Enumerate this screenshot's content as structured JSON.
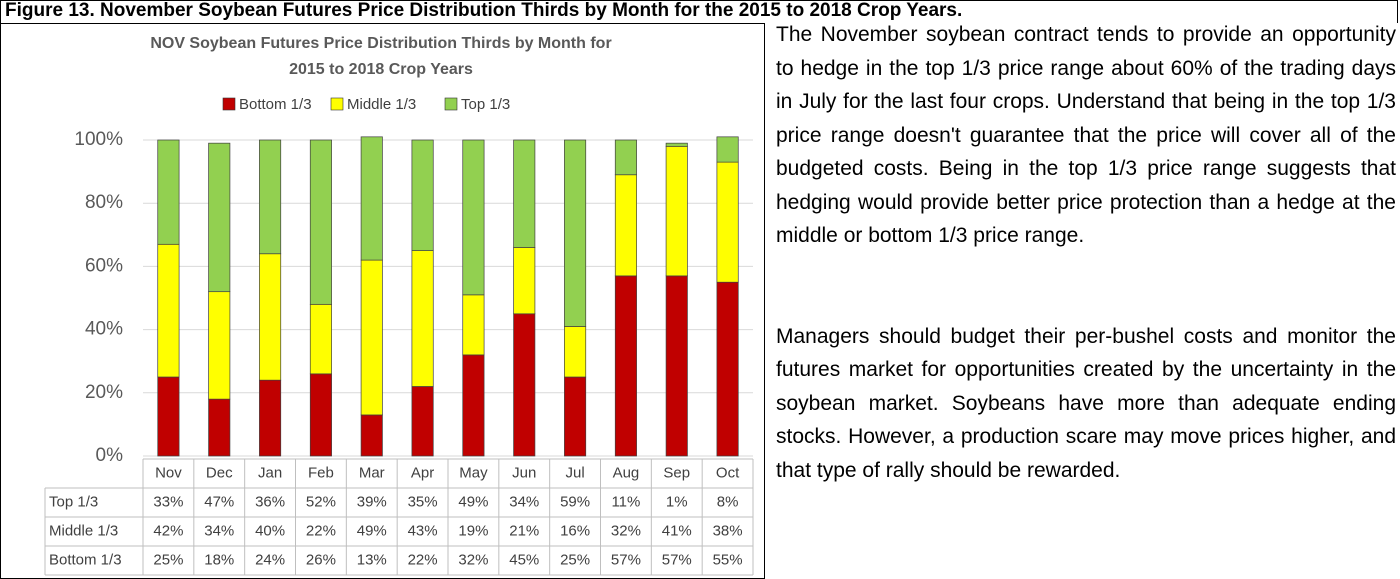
{
  "caption": "Figure 13. November Soybean Futures Price Distribution Thirds by Month for the 2015 to 2018 Crop Years.",
  "chart_data": {
    "type": "stacked_bar",
    "title": [
      "NOV Soybean Futures Price Distribution Thirds by Month for",
      "2015 to 2018 Crop Years"
    ],
    "categories": [
      "Nov",
      "Dec",
      "Jan",
      "Feb",
      "Mar",
      "Apr",
      "May",
      "Jun",
      "Jul",
      "Aug",
      "Sep",
      "Oct"
    ],
    "series": [
      {
        "name": "Bottom 1/3",
        "color": "#c00000",
        "values": [
          25,
          18,
          24,
          26,
          13,
          22,
          32,
          45,
          25,
          57,
          57,
          55
        ],
        "value_labels": [
          "25%",
          "18%",
          "24%",
          "26%",
          "13%",
          "22%",
          "32%",
          "45%",
          "25%",
          "57%",
          "57%",
          "55%"
        ]
      },
      {
        "name": "Middle 1/3",
        "color": "#ffff00",
        "values": [
          42,
          34,
          40,
          22,
          49,
          43,
          19,
          21,
          16,
          32,
          41,
          38
        ],
        "value_labels": [
          "42%",
          "34%",
          "40%",
          "22%",
          "49%",
          "43%",
          "19%",
          "21%",
          "16%",
          "32%",
          "41%",
          "38%"
        ]
      },
      {
        "name": "Top 1/3",
        "color": "#92d050",
        "values": [
          33,
          47,
          36,
          52,
          39,
          35,
          49,
          34,
          59,
          11,
          1,
          8
        ],
        "value_labels": [
          "33%",
          "47%",
          "36%",
          "52%",
          "39%",
          "35%",
          "49%",
          "34%",
          "59%",
          "11%",
          "1%",
          "8%"
        ]
      }
    ],
    "ylim": [
      0,
      100
    ],
    "yticks": [
      {
        "value": 0,
        "label": "0%"
      },
      {
        "value": 20,
        "label": "20%"
      },
      {
        "value": 40,
        "label": "40%"
      },
      {
        "value": 60,
        "label": "60%"
      },
      {
        "value": 80,
        "label": "80%"
      },
      {
        "value": 100,
        "label": "100%"
      }
    ],
    "grid": true,
    "legend": "top"
  },
  "paragraphs": [
    "The November soybean contract tends to provide an opportunity to hedge in the top 1/3 price range about 60% of the trading days in July for the last four crops. Understand that being in the top 1/3 price range doesn't guarantee that the price will cover all of the budgeted costs. Being in the top 1/3 price range suggests that hedging would provide better price protection than a hedge at the middle or bottom 1/3 price range.",
    "Managers should budget their per-bushel costs and monitor the futures market for opportunities created by the uncertainty in the soybean market. Soybeans have more than adequate ending stocks. However, a production scare may move prices higher, and that type of rally should be rewarded."
  ]
}
